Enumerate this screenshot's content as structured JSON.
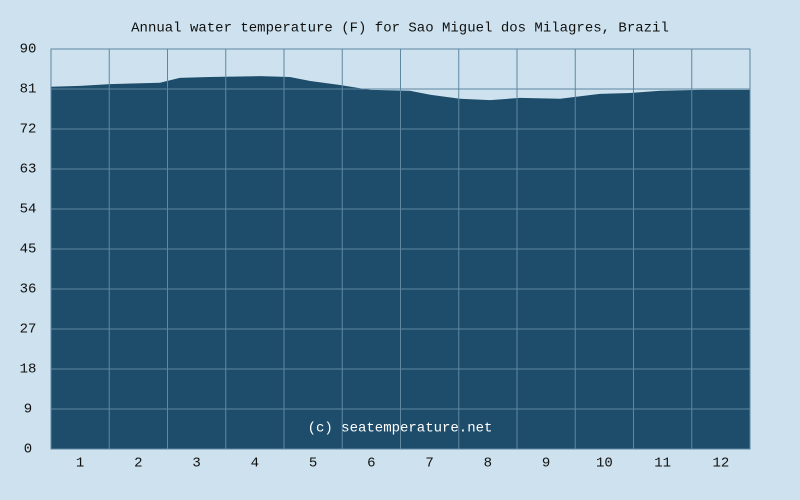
{
  "chart_data": {
    "type": "area",
    "title": "Annual water temperature (F) for Sao Miguel dos Milagres, Brazil",
    "annotation": "(c) seatemperature.net",
    "x": [
      0.5,
      1.0,
      1.51,
      2.37,
      2.71,
      3.22,
      4.09,
      4.6,
      4.95,
      5.46,
      5.98,
      6.66,
      7.01,
      7.52,
      8.04,
      8.55,
      9.24,
      9.92,
      10.44,
      10.96,
      11.64,
      12.5
    ],
    "series": [
      {
        "color": "#1e4d6b",
        "values": [
          81.5,
          81.7,
          82.1,
          82.4,
          83.5,
          83.7,
          83.9,
          83.7,
          82.8,
          81.9,
          80.8,
          80.6,
          79.7,
          78.8,
          78.5,
          79.0,
          78.8,
          79.9,
          80.1,
          80.6,
          80.8,
          80.8
        ]
      }
    ],
    "xlim": [
      0.5,
      12.5
    ],
    "xticks": [
      1,
      2,
      3,
      4,
      5,
      6,
      7,
      8,
      9,
      10,
      11,
      12
    ],
    "ylim": [
      0,
      90
    ],
    "yticks": [
      0,
      9,
      18,
      27,
      36,
      45,
      54,
      63,
      72,
      81,
      90
    ],
    "grid": true
  }
}
